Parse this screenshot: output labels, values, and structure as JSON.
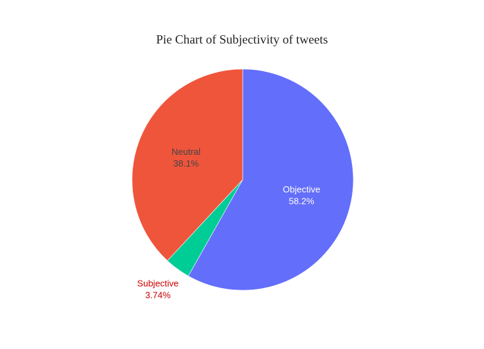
{
  "chart_data": {
    "type": "pie",
    "title": "Pie Chart of Subjectivity of tweets",
    "direction": "clockwise",
    "start_angle_deg": 90,
    "slices": [
      {
        "label": "Objective",
        "value": 58.2,
        "percent_text": "58.2%",
        "color": "#636efa",
        "text_color": "#ffffff",
        "text_position": "inside"
      },
      {
        "label": "Subjective",
        "value": 3.74,
        "percent_text": "3.74%",
        "color": "#00cc96",
        "text_color": "#cc0000",
        "text_position": "outside"
      },
      {
        "label": "Neutral",
        "value": 38.1,
        "percent_text": "38.1%",
        "color": "#ef553b",
        "text_color": "#444444",
        "text_position": "inside"
      }
    ]
  }
}
